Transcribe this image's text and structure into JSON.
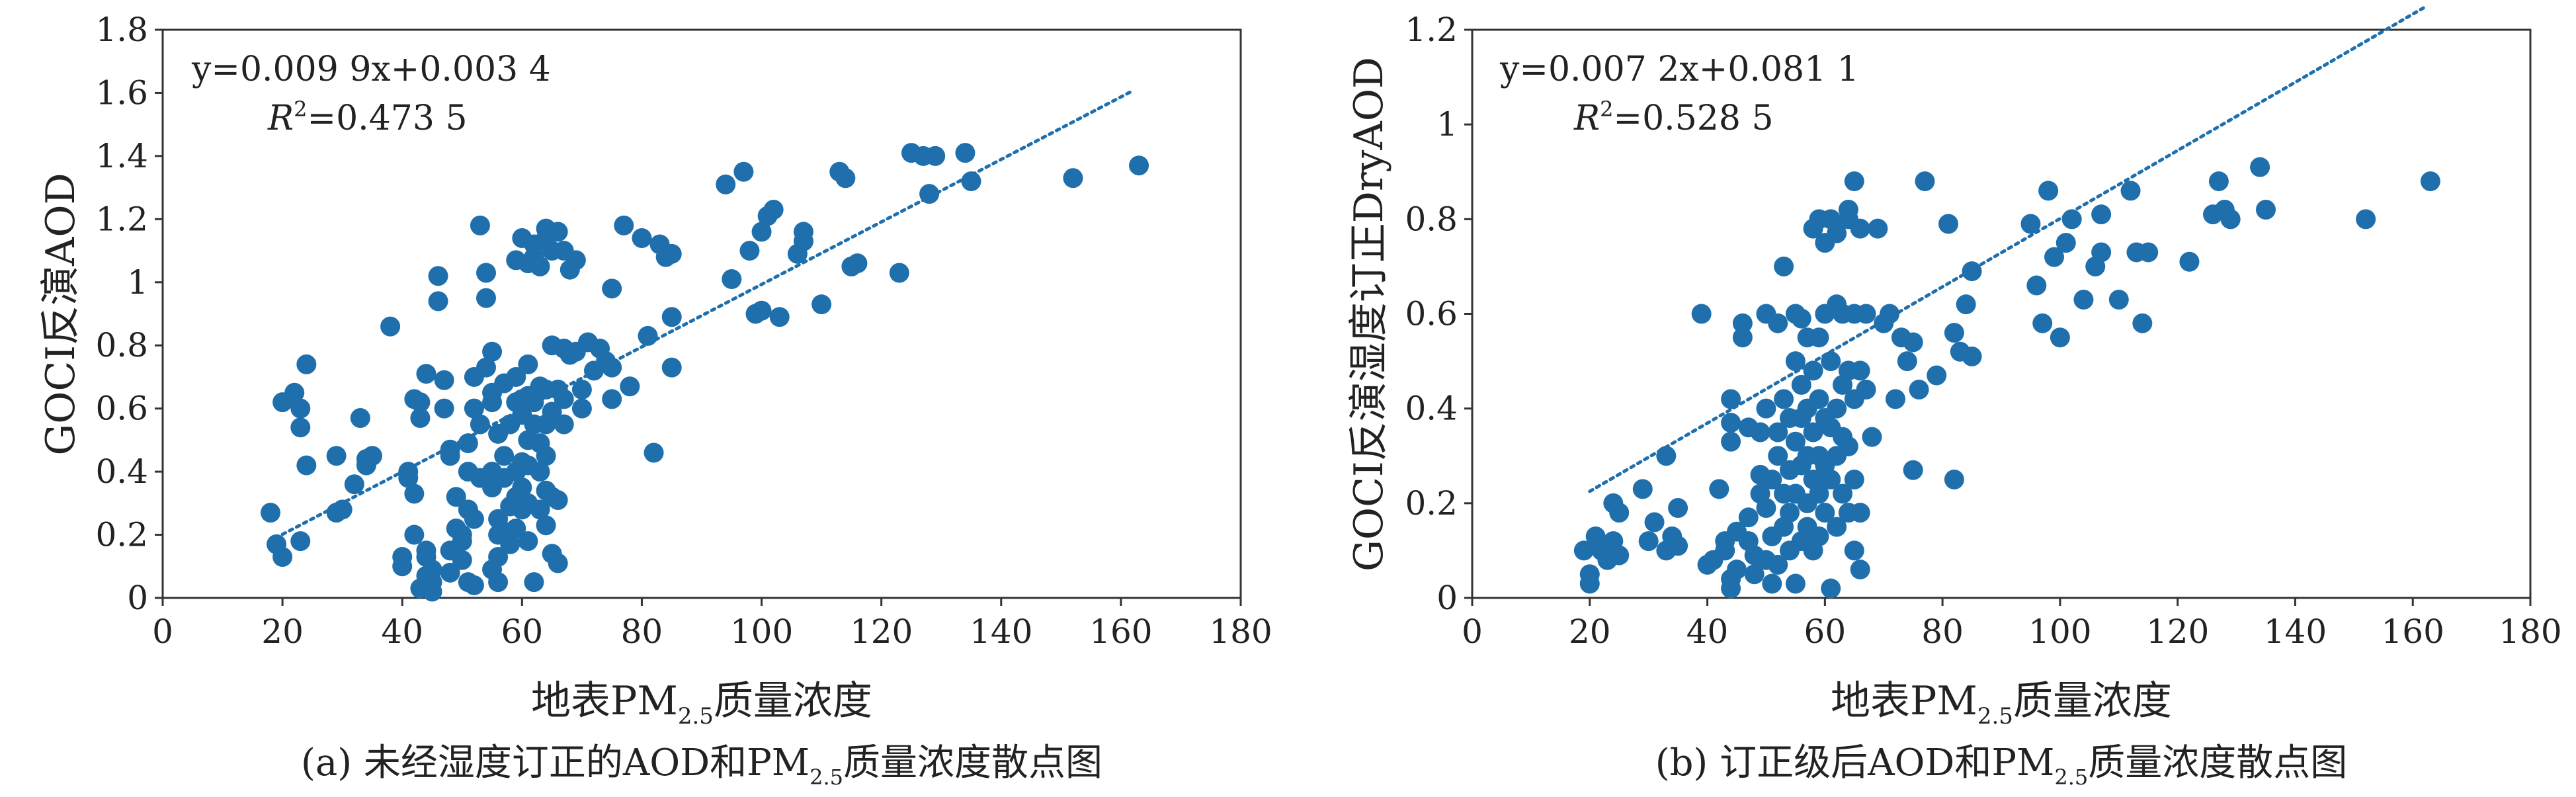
{
  "chart_data": [
    {
      "type": "scatter",
      "xlabel": "地表PM2.5质量浓度",
      "xlabel_main": "地表PM",
      "xlabel_sub": "2.5",
      "xlabel_tail": "质量浓度",
      "ylabel": "GOCI反演AOD",
      "xlim": [
        0,
        180
      ],
      "ylim": [
        0,
        1.8
      ],
      "xticks": [
        "0",
        "20",
        "40",
        "60",
        "80",
        "100",
        "120",
        "140",
        "160",
        "180"
      ],
      "yticks": [
        "0",
        "0.2",
        "0.4",
        "0.6",
        "0.8",
        "1",
        "1.2",
        "1.4",
        "1.6",
        "1.8"
      ],
      "equation": "y=0.009 9x+0.003 4",
      "r2_label": "R",
      "r2_sup": "2",
      "r2_value": "=0.473 5",
      "trendline": {
        "x": [
          20,
          162
        ],
        "y": [
          0.2014,
          1.607
        ]
      },
      "caption_main": "(a) 未经湿度订正的AOD和PM",
      "caption_sub": "2.5",
      "caption_tail": "质量浓度散点图",
      "marker_color": "#1f6fad",
      "points": [
        [
          18,
          0.27
        ],
        [
          19,
          0.17
        ],
        [
          20,
          0.62
        ],
        [
          20,
          0.13
        ],
        [
          22,
          0.65
        ],
        [
          23,
          0.6
        ],
        [
          23,
          0.54
        ],
        [
          23,
          0.18
        ],
        [
          24,
          0.74
        ],
        [
          24,
          0.42
        ],
        [
          29,
          0.27
        ],
        [
          29,
          0.45
        ],
        [
          30,
          0.28
        ],
        [
          32,
          0.36
        ],
        [
          33,
          0.57
        ],
        [
          34,
          0.42
        ],
        [
          34,
          0.44
        ],
        [
          35,
          0.45
        ],
        [
          38,
          0.86
        ],
        [
          40,
          0.13
        ],
        [
          40,
          0.1
        ],
        [
          41,
          0.4
        ],
        [
          41,
          0.38
        ],
        [
          42,
          0.33
        ],
        [
          42,
          0.2
        ],
        [
          42,
          0.63
        ],
        [
          43,
          0.62
        ],
        [
          43,
          0.57
        ],
        [
          43,
          0.03
        ],
        [
          44,
          0.07
        ],
        [
          44,
          0.15
        ],
        [
          44,
          0.71
        ],
        [
          44,
          0.13
        ],
        [
          45,
          0.09
        ],
        [
          45,
          0.05
        ],
        [
          45,
          0.02
        ],
        [
          46,
          0.94
        ],
        [
          46,
          1.02
        ],
        [
          47,
          0.69
        ],
        [
          47,
          0.6
        ],
        [
          48,
          0.47
        ],
        [
          48,
          0.45
        ],
        [
          48,
          0.15
        ],
        [
          48,
          0.08
        ],
        [
          49,
          0.22
        ],
        [
          49,
          0.32
        ],
        [
          50,
          0.12
        ],
        [
          50,
          0.2
        ],
        [
          50,
          0.18
        ],
        [
          51,
          0.05
        ],
        [
          51,
          0.28
        ],
        [
          51,
          0.4
        ],
        [
          51,
          0.49
        ],
        [
          52,
          0.6
        ],
        [
          52,
          0.7
        ],
        [
          52,
          0.25
        ],
        [
          52,
          0.04
        ],
        [
          53,
          1.18
        ],
        [
          53,
          0.38
        ],
        [
          53,
          0.55
        ],
        [
          54,
          0.95
        ],
        [
          54,
          1.03
        ],
        [
          54,
          0.73
        ],
        [
          55,
          0.78
        ],
        [
          55,
          0.65
        ],
        [
          55,
          0.62
        ],
        [
          55,
          0.4
        ],
        [
          55,
          0.35
        ],
        [
          55,
          0.09
        ],
        [
          56,
          0.52
        ],
        [
          56,
          0.25
        ],
        [
          56,
          0.2
        ],
        [
          56,
          0.13
        ],
        [
          56,
          0.05
        ],
        [
          57,
          0.68
        ],
        [
          57,
          0.45
        ],
        [
          57,
          0.38
        ],
        [
          57,
          0.21
        ],
        [
          58,
          0.55
        ],
        [
          58,
          0.29
        ],
        [
          58,
          0.17
        ],
        [
          59,
          1.07
        ],
        [
          59,
          0.7
        ],
        [
          59,
          0.62
        ],
        [
          59,
          0.4
        ],
        [
          59,
          0.32
        ],
        [
          59,
          0.22
        ],
        [
          60,
          1.14
        ],
        [
          60,
          0.63
        ],
        [
          60,
          0.58
        ],
        [
          60,
          0.43
        ],
        [
          60,
          0.35
        ],
        [
          60,
          0.28
        ],
        [
          61,
          1.06
        ],
        [
          61,
          0.74
        ],
        [
          61,
          0.64
        ],
        [
          61,
          0.5
        ],
        [
          61,
          0.42
        ],
        [
          61,
          0.3
        ],
        [
          61,
          0.18
        ],
        [
          62,
          1.12
        ],
        [
          62,
          1.08
        ],
        [
          62,
          0.62
        ],
        [
          62,
          0.55
        ],
        [
          62,
          0.05
        ],
        [
          63,
          1.05
        ],
        [
          63,
          0.67
        ],
        [
          63,
          0.49
        ],
        [
          63,
          0.4
        ],
        [
          63,
          0.28
        ],
        [
          64,
          1.14
        ],
        [
          64,
          1.17
        ],
        [
          64,
          0.66
        ],
        [
          64,
          0.55
        ],
        [
          64,
          0.45
        ],
        [
          64,
          0.34
        ],
        [
          64,
          0.23
        ],
        [
          65,
          1.1
        ],
        [
          65,
          0.8
        ],
        [
          65,
          0.59
        ],
        [
          65,
          0.32
        ],
        [
          65,
          0.14
        ],
        [
          66,
          1.16
        ],
        [
          66,
          0.66
        ],
        [
          66,
          0.31
        ],
        [
          66,
          0.11
        ],
        [
          67,
          1.1
        ],
        [
          67,
          0.79
        ],
        [
          67,
          0.63
        ],
        [
          67,
          0.55
        ],
        [
          68,
          1.04
        ],
        [
          68,
          0.77
        ],
        [
          69,
          1.07
        ],
        [
          69,
          0.78
        ],
        [
          70,
          0.66
        ],
        [
          70,
          0.6
        ],
        [
          71,
          0.81
        ],
        [
          72,
          0.72
        ],
        [
          73,
          0.79
        ],
        [
          74,
          0.75
        ],
        [
          75,
          0.98
        ],
        [
          75,
          0.73
        ],
        [
          75,
          0.63
        ],
        [
          77,
          1.18
        ],
        [
          78,
          0.67
        ],
        [
          80,
          1.14
        ],
        [
          81,
          0.83
        ],
        [
          82,
          0.46
        ],
        [
          83,
          1.12
        ],
        [
          84,
          1.08
        ],
        [
          85,
          1.09
        ],
        [
          85,
          0.89
        ],
        [
          85,
          0.73
        ],
        [
          94,
          1.31
        ],
        [
          95,
          1.01
        ],
        [
          97,
          1.35
        ],
        [
          98,
          1.1
        ],
        [
          99,
          0.9
        ],
        [
          100,
          0.91
        ],
        [
          100,
          1.16
        ],
        [
          101,
          1.21
        ],
        [
          102,
          1.23
        ],
        [
          103,
          0.89
        ],
        [
          106,
          1.09
        ],
        [
          107,
          1.13
        ],
        [
          107,
          1.16
        ],
        [
          110,
          0.93
        ],
        [
          113,
          1.35
        ],
        [
          114,
          1.33
        ],
        [
          115,
          1.05
        ],
        [
          116,
          1.06
        ],
        [
          123,
          1.03
        ],
        [
          125,
          1.41
        ],
        [
          127,
          1.4
        ],
        [
          128,
          1.28
        ],
        [
          129,
          1.4
        ],
        [
          134,
          1.41
        ],
        [
          135,
          1.32
        ],
        [
          152,
          1.33
        ],
        [
          163,
          1.37
        ]
      ]
    },
    {
      "type": "scatter",
      "xlabel": "地表PM2.5质量浓度",
      "xlabel_main": "地表PM",
      "xlabel_sub": "2.5",
      "xlabel_tail": "质量浓度",
      "ylabel": "GOCI反演湿度订正DryAOD",
      "xlim": [
        0,
        180
      ],
      "ylim": [
        0,
        1.2
      ],
      "xticks": [
        "0",
        "20",
        "40",
        "60",
        "80",
        "100",
        "120",
        "140",
        "160",
        "180"
      ],
      "yticks": [
        "0",
        "0.2",
        "0.4",
        "0.6",
        "0.8",
        "1",
        "1.2"
      ],
      "equation": "y=0.007 2x+0.081 1",
      "r2_label": "R",
      "r2_sup": "2",
      "r2_value": "=0.528 5",
      "trendline": {
        "x": [
          20,
          162
        ],
        "y": [
          0.2251,
          1.2475
        ]
      },
      "caption_main": "(b) 订正级后AOD和PM",
      "caption_sub": "2.5",
      "caption_tail": "质量浓度散点图",
      "marker_color": "#1f6fad",
      "points": [
        [
          19,
          0.1
        ],
        [
          20,
          0.03
        ],
        [
          20,
          0.05
        ],
        [
          21,
          0.13
        ],
        [
          22,
          0.1
        ],
        [
          23,
          0.08
        ],
        [
          24,
          0.2
        ],
        [
          24,
          0.12
        ],
        [
          25,
          0.18
        ],
        [
          25,
          0.09
        ],
        [
          29,
          0.23
        ],
        [
          30,
          0.12
        ],
        [
          31,
          0.16
        ],
        [
          33,
          0.3
        ],
        [
          33,
          0.1
        ],
        [
          34,
          0.13
        ],
        [
          35,
          0.19
        ],
        [
          35,
          0.11
        ],
        [
          39,
          0.6
        ],
        [
          40,
          0.07
        ],
        [
          41,
          0.08
        ],
        [
          42,
          0.23
        ],
        [
          43,
          0.12
        ],
        [
          43,
          0.1
        ],
        [
          44,
          0.42
        ],
        [
          44,
          0.37
        ],
        [
          44,
          0.33
        ],
        [
          44,
          0.04
        ],
        [
          44,
          0.02
        ],
        [
          45,
          0.14
        ],
        [
          45,
          0.06
        ],
        [
          46,
          0.58
        ],
        [
          46,
          0.55
        ],
        [
          47,
          0.36
        ],
        [
          47,
          0.17
        ],
        [
          47,
          0.12
        ],
        [
          48,
          0.09
        ],
        [
          48,
          0.05
        ],
        [
          49,
          0.35
        ],
        [
          49,
          0.26
        ],
        [
          49,
          0.22
        ],
        [
          50,
          0.6
        ],
        [
          50,
          0.4
        ],
        [
          50,
          0.19
        ],
        [
          50,
          0.08
        ],
        [
          51,
          0.03
        ],
        [
          51,
          0.13
        ],
        [
          51,
          0.25
        ],
        [
          52,
          0.58
        ],
        [
          52,
          0.35
        ],
        [
          52,
          0.3
        ],
        [
          52,
          0.07
        ],
        [
          53,
          0.7
        ],
        [
          53,
          0.42
        ],
        [
          53,
          0.22
        ],
        [
          53,
          0.15
        ],
        [
          54,
          0.38
        ],
        [
          54,
          0.27
        ],
        [
          54,
          0.18
        ],
        [
          54,
          0.1
        ],
        [
          55,
          0.6
        ],
        [
          55,
          0.5
        ],
        [
          55,
          0.33
        ],
        [
          55,
          0.22
        ],
        [
          55,
          0.03
        ],
        [
          56,
          0.59
        ],
        [
          56,
          0.45
        ],
        [
          56,
          0.38
        ],
        [
          56,
          0.28
        ],
        [
          56,
          0.12
        ],
        [
          57,
          0.55
        ],
        [
          57,
          0.4
        ],
        [
          57,
          0.3
        ],
        [
          57,
          0.2
        ],
        [
          57,
          0.15
        ],
        [
          58,
          0.78
        ],
        [
          58,
          0.48
        ],
        [
          58,
          0.35
        ],
        [
          58,
          0.25
        ],
        [
          58,
          0.1
        ],
        [
          59,
          0.8
        ],
        [
          59,
          0.55
        ],
        [
          59,
          0.42
        ],
        [
          59,
          0.3
        ],
        [
          59,
          0.22
        ],
        [
          59,
          0.13
        ],
        [
          60,
          0.75
        ],
        [
          60,
          0.6
        ],
        [
          60,
          0.38
        ],
        [
          60,
          0.28
        ],
        [
          60,
          0.18
        ],
        [
          61,
          0.8
        ],
        [
          61,
          0.5
        ],
        [
          61,
          0.36
        ],
        [
          61,
          0.25
        ],
        [
          61,
          0.02
        ],
        [
          62,
          0.77
        ],
        [
          62,
          0.62
        ],
        [
          62,
          0.4
        ],
        [
          62,
          0.3
        ],
        [
          62,
          0.15
        ],
        [
          63,
          0.6
        ],
        [
          63,
          0.45
        ],
        [
          63,
          0.34
        ],
        [
          63,
          0.22
        ],
        [
          64,
          0.82
        ],
        [
          64,
          0.8
        ],
        [
          64,
          0.48
        ],
        [
          64,
          0.32
        ],
        [
          64,
          0.18
        ],
        [
          65,
          0.88
        ],
        [
          65,
          0.6
        ],
        [
          65,
          0.42
        ],
        [
          65,
          0.25
        ],
        [
          65,
          0.1
        ],
        [
          66,
          0.78
        ],
        [
          66,
          0.48
        ],
        [
          66,
          0.18
        ],
        [
          66,
          0.06
        ],
        [
          67,
          0.6
        ],
        [
          67,
          0.44
        ],
        [
          68,
          0.34
        ],
        [
          69,
          0.78
        ],
        [
          70,
          0.58
        ],
        [
          71,
          0.6
        ],
        [
          72,
          0.42
        ],
        [
          73,
          0.55
        ],
        [
          74,
          0.5
        ],
        [
          75,
          0.54
        ],
        [
          75,
          0.27
        ],
        [
          76,
          0.44
        ],
        [
          77,
          0.88
        ],
        [
          79,
          0.47
        ],
        [
          81,
          0.79
        ],
        [
          82,
          0.56
        ],
        [
          82,
          0.25
        ],
        [
          83,
          0.52
        ],
        [
          84,
          0.62
        ],
        [
          85,
          0.69
        ],
        [
          85,
          0.51
        ],
        [
          95,
          0.79
        ],
        [
          96,
          0.66
        ],
        [
          97,
          0.58
        ],
        [
          98,
          0.86
        ],
        [
          99,
          0.72
        ],
        [
          100,
          0.55
        ],
        [
          101,
          0.75
        ],
        [
          102,
          0.8
        ],
        [
          104,
          0.63
        ],
        [
          106,
          0.7
        ],
        [
          107,
          0.81
        ],
        [
          107,
          0.73
        ],
        [
          110,
          0.63
        ],
        [
          112,
          0.86
        ],
        [
          113,
          0.73
        ],
        [
          114,
          0.58
        ],
        [
          115,
          0.73
        ],
        [
          122,
          0.71
        ],
        [
          126,
          0.81
        ],
        [
          127,
          0.88
        ],
        [
          128,
          0.82
        ],
        [
          129,
          0.8
        ],
        [
          134,
          0.91
        ],
        [
          135,
          0.82
        ],
        [
          152,
          0.8
        ],
        [
          163,
          0.88
        ]
      ]
    }
  ]
}
